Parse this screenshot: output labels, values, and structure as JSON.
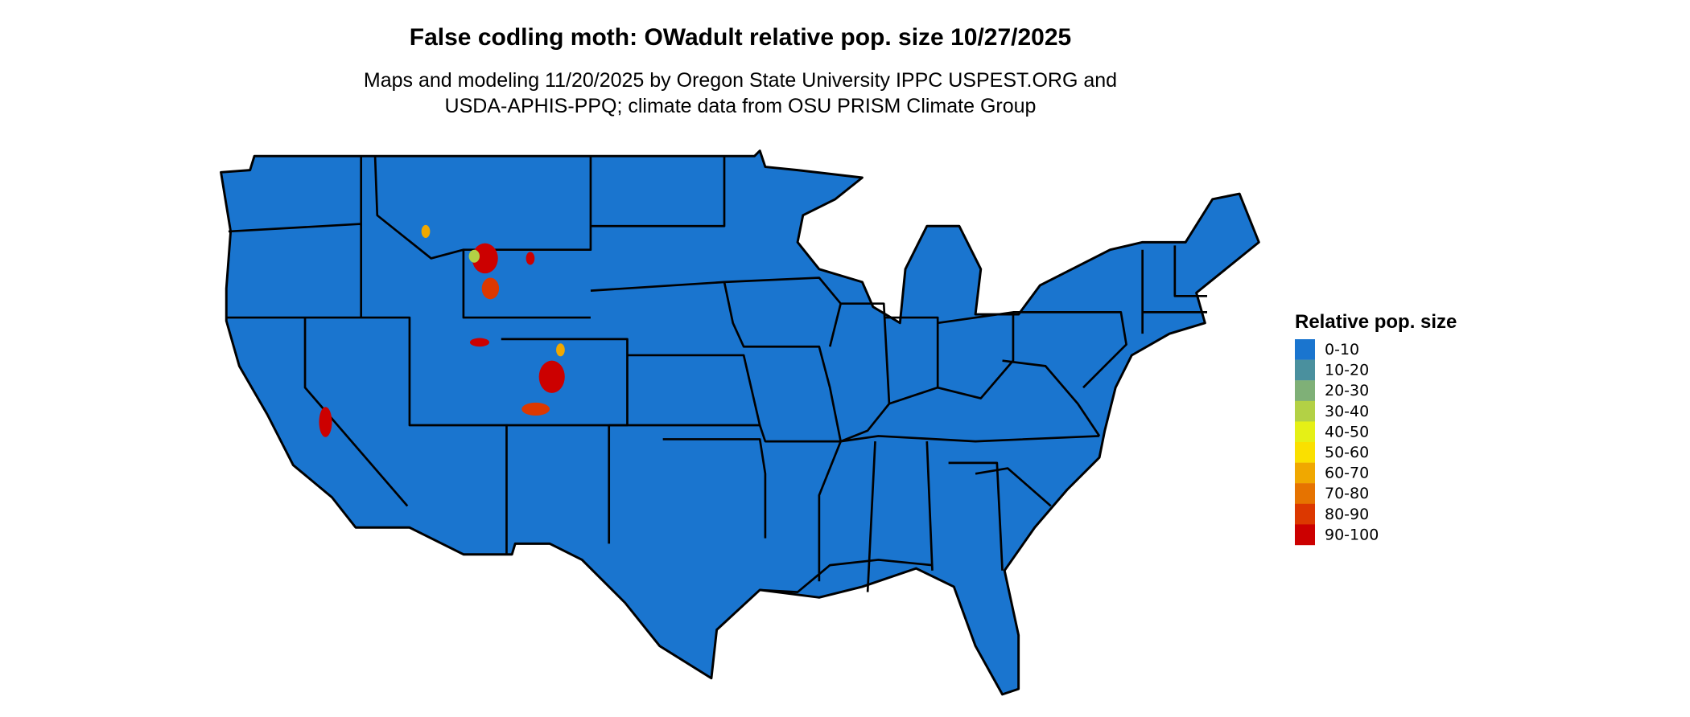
{
  "title": "False codling moth: OWadult relative pop. size 10/27/2025",
  "subtitle_lines": [
    "Maps and modeling 11/20/2025 by Oregon State University IPPC USPEST.ORG and",
    "USDA-APHIS-PPQ; climate data from OSU PRISM Climate Group"
  ],
  "chart_data": {
    "type": "heatmap",
    "map": "contiguous United States with state borders",
    "dominant_class": "0-10",
    "hotspot_classes": [
      "30-40",
      "60-70",
      "80-90",
      "90-100"
    ],
    "legend": {
      "title": "Relative pop. size",
      "placement": "right",
      "items": [
        {
          "label": "0-10",
          "color": "#1a75cf"
        },
        {
          "label": "10-20",
          "color": "#4a909e"
        },
        {
          "label": "20-30",
          "color": "#7fb077"
        },
        {
          "label": "30-40",
          "color": "#b3d145"
        },
        {
          "label": "40-50",
          "color": "#e5f016"
        },
        {
          "label": "50-60",
          "color": "#fae000"
        },
        {
          "label": "60-70",
          "color": "#f0a800"
        },
        {
          "label": "70-80",
          "color": "#e67300"
        },
        {
          "label": "80-90",
          "color": "#dc3800"
        },
        {
          "label": "90-100",
          "color": "#cc0000"
        }
      ]
    }
  }
}
